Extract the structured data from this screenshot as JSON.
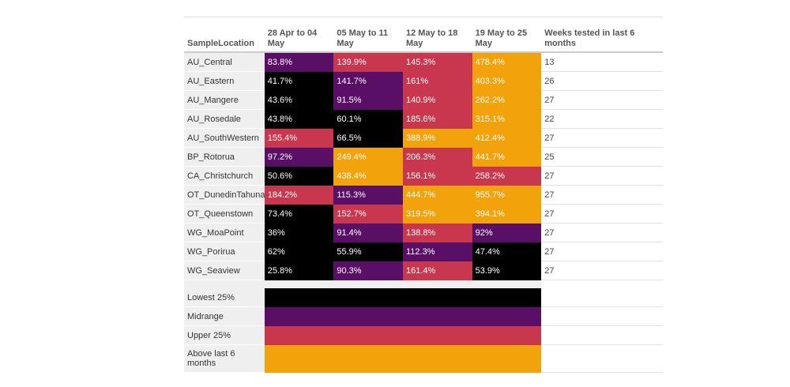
{
  "table": {
    "headers": [
      "SampleLocation",
      "28 Apr to 04 May",
      "05 May to 11 May",
      "12 May to 18 May",
      "19 May to 25 May",
      "Weeks tested in last 6 months"
    ]
  },
  "categories_colors": {
    "lowest": "#000000",
    "midrange": "#5a0f66",
    "upper": "#c8374d",
    "above": "#f2a20b"
  },
  "chart_data": {
    "type": "heatmap",
    "title": "",
    "columns": [
      "28 Apr to 04 May",
      "05 May to 11 May",
      "12 May to 18 May",
      "19 May to 25 May"
    ],
    "rows": [
      {
        "location": "AU_Central",
        "values": [
          "83.8%",
          "139.9%",
          "145.3%",
          "478.4%"
        ],
        "categories": [
          "midrange",
          "upper",
          "upper",
          "above"
        ],
        "weeks": "13"
      },
      {
        "location": "AU_Eastern",
        "values": [
          "41.7%",
          "141.7%",
          "161%",
          "403.3%"
        ],
        "categories": [
          "lowest",
          "midrange",
          "upper",
          "above"
        ],
        "weeks": "26"
      },
      {
        "location": "AU_Mangere",
        "values": [
          "43.6%",
          "91.5%",
          "140.9%",
          "262.2%"
        ],
        "categories": [
          "lowest",
          "midrange",
          "upper",
          "above"
        ],
        "weeks": "27"
      },
      {
        "location": "AU_Rosedale",
        "values": [
          "43.8%",
          "60.1%",
          "185.6%",
          "315.1%"
        ],
        "categories": [
          "lowest",
          "lowest",
          "upper",
          "above"
        ],
        "weeks": "22"
      },
      {
        "location": "AU_SouthWestern",
        "values": [
          "155.4%",
          "66.5%",
          "388.9%",
          "412.4%"
        ],
        "categories": [
          "upper",
          "lowest",
          "above",
          "above"
        ],
        "weeks": "27"
      },
      {
        "location": "BP_Rotorua",
        "values": [
          "97.2%",
          "249.4%",
          "206.3%",
          "441.7%"
        ],
        "categories": [
          "midrange",
          "above",
          "upper",
          "above"
        ],
        "weeks": "25"
      },
      {
        "location": "CA_Christchurch",
        "values": [
          "50.6%",
          "438.4%",
          "156.1%",
          "258.2%"
        ],
        "categories": [
          "lowest",
          "above",
          "upper",
          "upper"
        ],
        "weeks": "27"
      },
      {
        "location": "OT_DunedinTahuna",
        "values": [
          "184.2%",
          "115.3%",
          "444.7%",
          "955.7%"
        ],
        "categories": [
          "upper",
          "midrange",
          "above",
          "above"
        ],
        "weeks": "27"
      },
      {
        "location": "OT_Queenstown",
        "values": [
          "73.4%",
          "152.7%",
          "319.5%",
          "394.1%"
        ],
        "categories": [
          "lowest",
          "upper",
          "above",
          "above"
        ],
        "weeks": "27"
      },
      {
        "location": "WG_MoaPoint",
        "values": [
          "36%",
          "91.4%",
          "138.8%",
          "92%"
        ],
        "categories": [
          "lowest",
          "midrange",
          "upper",
          "midrange"
        ],
        "weeks": "27"
      },
      {
        "location": "WG_Porirua",
        "values": [
          "62%",
          "55.9%",
          "112.3%",
          "47.4%"
        ],
        "categories": [
          "lowest",
          "lowest",
          "midrange",
          "lowest"
        ],
        "weeks": "27"
      },
      {
        "location": "WG_Seaview",
        "values": [
          "25.8%",
          "90.3%",
          "161.4%",
          "53.9%"
        ],
        "categories": [
          "lowest",
          "midrange",
          "upper",
          "lowest"
        ],
        "weeks": "27"
      }
    ],
    "legend": [
      {
        "label": "Lowest 25%",
        "category": "lowest"
      },
      {
        "label": "Midrange",
        "category": "midrange"
      },
      {
        "label": "Upper 25%",
        "category": "upper"
      },
      {
        "label": "Above last 6 months",
        "category": "above"
      }
    ]
  }
}
